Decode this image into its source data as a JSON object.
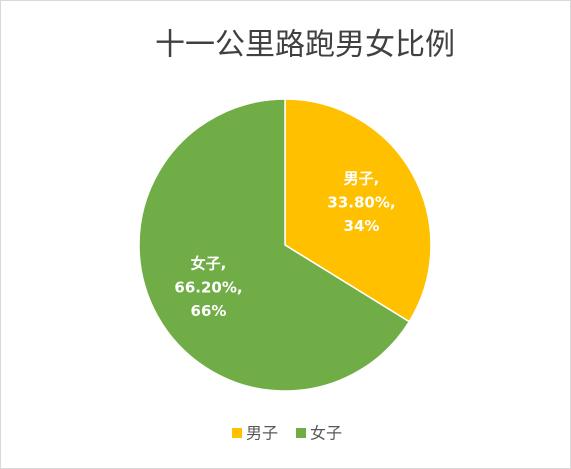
{
  "chart_data": {
    "type": "pie",
    "title": "十一公里路跑男女比例",
    "categories": [
      "男子",
      "女子"
    ],
    "values": [
      33.8,
      66.2
    ],
    "value_labels": [
      "33.80%",
      "66.20%"
    ],
    "percent_labels": [
      "34%",
      "66%"
    ],
    "label_separator": ",",
    "colors": [
      "#FFC000",
      "#70AD47"
    ],
    "legend": "bottom"
  }
}
